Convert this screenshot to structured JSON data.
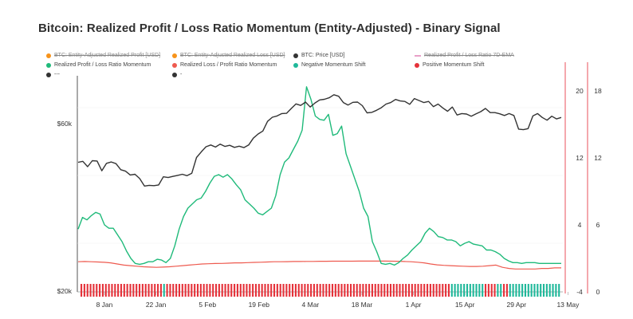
{
  "title": "Bitcoin: Realized Profit / Loss Ratio Momentum (Entity-Adjusted) - Binary Signal",
  "legend": [
    {
      "label": "BTC: Entity-Adjusted Realized Profit [USD]",
      "color": "#f7931a",
      "marker": "dot",
      "disabled": true
    },
    {
      "label": "BTC: Entity-Adjusted Realized Loss [USD]",
      "color": "#f7931a",
      "marker": "dot",
      "disabled": true
    },
    {
      "label": "BTC: Price [USD]",
      "color": "#333333",
      "marker": "dot",
      "disabled": false
    },
    {
      "label": "Realized Profit / Loss Ratio 7D-EMA",
      "color": "#e8a0c8",
      "marker": "dash",
      "disabled": true
    },
    {
      "label": "---",
      "color": "#333333",
      "marker": "dot",
      "disabled": false
    },
    {
      "label": "Realized Profit / Loss Ratio Momentum",
      "color": "#1fba7a",
      "marker": "dot",
      "disabled": false
    },
    {
      "label": "Realized Loss / Profit Ratio Momentum",
      "color": "#ee5a4f",
      "marker": "dot",
      "disabled": false
    },
    {
      "label": "Negative Momentum Shift",
      "color": "#1fb89a",
      "marker": "dot",
      "disabled": false
    },
    {
      "label": "Positive Momentum Shift",
      "color": "#e5323a",
      "marker": "dot",
      "disabled": false
    },
    {
      "label": "-",
      "color": "#333333",
      "marker": "dot",
      "disabled": false
    }
  ],
  "colors": {
    "price": "#333333",
    "profit_momentum": "#1fba7a",
    "loss_momentum": "#ee5a4f",
    "negative_shift": "#1fb89a",
    "positive_shift": "#e5323a",
    "axis_right": "#e8505b"
  },
  "chart_data": {
    "type": "line",
    "x_axis": {
      "type": "date",
      "ticks": [
        "8 Jan",
        "22 Jan",
        "5 Feb",
        "19 Feb",
        "4 Mar",
        "18 Mar",
        "1 Apr",
        "15 Apr",
        "29 Apr",
        "13 May"
      ]
    },
    "y_axes": {
      "left": {
        "scale": "log",
        "ticks": [
          "$20k",
          "$60k"
        ],
        "range": [
          20000,
          82000
        ]
      },
      "right_inner": {
        "ticks": [
          "-4",
          "4",
          "12",
          "20"
        ],
        "range": [
          -4,
          25
        ]
      },
      "right_outer": {
        "ticks": [
          "0",
          "6",
          "12",
          "18"
        ],
        "range": [
          0,
          22
        ]
      }
    },
    "grid": false,
    "legend_position": "top",
    "series": [
      {
        "name": "BTC: Price [USD]",
        "axis": "left",
        "values": [
          46500,
          46800,
          45200,
          47000,
          46900,
          44000,
          46200,
          46600,
          46100,
          44300,
          43900,
          42800,
          43000,
          41800,
          39800,
          40000,
          39900,
          40100,
          42300,
          42100,
          42400,
          42700,
          43000,
          42600,
          43300,
          48000,
          49800,
          51500,
          52100,
          51400,
          52400,
          51600,
          52000,
          51300,
          51700,
          51200,
          52100,
          54500,
          56000,
          57100,
          60800,
          62500,
          63000,
          64000,
          64100,
          66200,
          68200,
          67500,
          69000,
          66800,
          68600,
          70000,
          70300,
          71000,
          72400,
          71700,
          68800,
          67700,
          68900,
          69000,
          67400,
          64300,
          64500,
          65400,
          66500,
          68100,
          68800,
          70200,
          69500,
          69300,
          68000,
          70600,
          69700,
          68800,
          69300,
          67000,
          68100,
          66400,
          65000,
          66800,
          63400,
          64000,
          63800,
          62900,
          63900,
          64800,
          66200,
          64400,
          64400,
          63900,
          63200,
          64000,
          63200,
          57800,
          57600,
          58000,
          63000,
          64000,
          62400,
          61300,
          62900,
          61800,
          62400
        ]
      },
      {
        "name": "Realized Profit / Loss Ratio Momentum",
        "axis": "right_inner",
        "values": [
          3.5,
          4.9,
          4.6,
          5.1,
          5.5,
          5.3,
          4.0,
          3.6,
          3.6,
          2.8,
          2.0,
          0.9,
          0.0,
          -0.6,
          -0.7,
          -0.6,
          -0.4,
          -0.4,
          -0.1,
          -0.2,
          -0.5,
          0.0,
          1.5,
          3.5,
          5.0,
          6.0,
          6.5,
          7.0,
          7.2,
          8.0,
          9.0,
          9.8,
          10.0,
          9.7,
          10.0,
          9.5,
          8.8,
          8.2,
          7.0,
          6.5,
          6.0,
          5.4,
          5.2,
          5.6,
          6.0,
          7.5,
          10.0,
          11.5,
          12.0,
          13.0,
          14.0,
          15.3,
          20.5,
          19.0,
          17.0,
          16.6,
          16.5,
          17.2,
          14.7,
          14.9,
          15.8,
          12.5,
          11.0,
          9.5,
          8.0,
          6.0,
          5.0,
          2.0,
          0.8,
          -0.6,
          -0.7,
          -0.6,
          -0.8,
          -0.5,
          0.0,
          0.4,
          1.0,
          1.5,
          2.0,
          3.0,
          3.6,
          3.2,
          2.6,
          2.5,
          2.2,
          2.2,
          2.0,
          1.5,
          1.8,
          2.0,
          1.7,
          1.6,
          1.5,
          1.0,
          1.0,
          0.8,
          0.5,
          0.0,
          -0.3,
          -0.5,
          -0.5,
          -0.6,
          -0.5,
          -0.5,
          -0.5,
          -0.6,
          -0.6,
          -0.6,
          -0.6,
          -0.6,
          -0.6
        ]
      },
      {
        "name": "Realized Loss / Profit Ratio Momentum",
        "axis": "right_outer",
        "values": [
          2.7,
          2.72,
          2.7,
          2.68,
          2.65,
          2.6,
          2.5,
          2.4,
          2.35,
          2.3,
          2.25,
          2.22,
          2.2,
          2.22,
          2.25,
          2.3,
          2.35,
          2.4,
          2.45,
          2.5,
          2.52,
          2.54,
          2.55,
          2.57,
          2.6,
          2.6,
          2.62,
          2.64,
          2.66,
          2.68,
          2.7,
          2.7,
          2.71,
          2.72,
          2.72,
          2.73,
          2.73,
          2.74,
          2.74,
          2.75,
          2.75,
          2.75,
          2.75,
          2.76,
          2.76,
          2.76,
          2.76,
          2.76,
          2.75,
          2.74,
          2.72,
          2.7,
          2.66,
          2.6,
          2.5,
          2.42,
          2.38,
          2.35,
          2.32,
          2.3,
          2.28,
          2.28,
          2.3,
          2.35,
          2.4,
          2.2,
          2.1,
          2.05,
          2.05,
          2.05,
          2.05,
          2.1,
          2.1,
          2.15,
          2.15
        ]
      }
    ],
    "signal": {
      "name": "Binary Signal",
      "axis": "right_outer",
      "states": "RRRRRRRRRRRRRRRRRRRRRRRRRRRGRRRRRRRRRRRRRRRRRRRRRRRRRRRRRRRRRRRRRRRRRRRRRRRRRRRRRRRRRRRRRRRRRRRRRRRRRRRRRRRRRRRRRRRRRRRRRGGGGGGGGGGGRRRRGGRRGGGGGGGGGGGGGGGGG",
      "legend": {
        "R": "Positive Momentum Shift",
        "G": "Negative Momentum Shift"
      }
    }
  }
}
